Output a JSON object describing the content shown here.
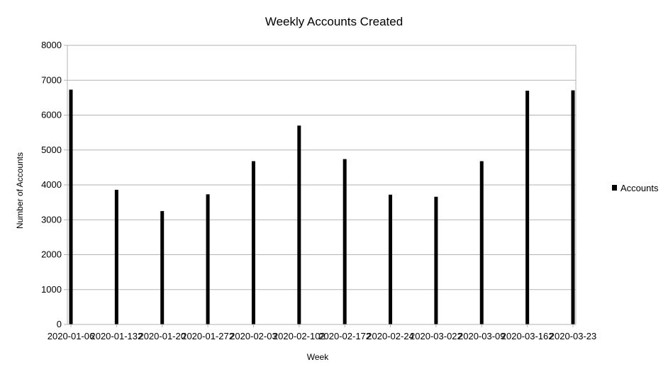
{
  "chart_data": {
    "type": "bar",
    "title": "Weekly Accounts Created",
    "xlabel": "Week",
    "ylabel": "Number of Accounts",
    "categories": [
      "2020-01-06",
      "2020-01-13",
      "2020-01-20",
      "2020-01-27",
      "2020-02-03",
      "2020-02-10",
      "2020-02-17",
      "2020-02-24",
      "2020-03-02",
      "2020-03-09",
      "2020-03-16",
      "2020-03-23"
    ],
    "x_tick_labels": [
      "2020-01-06",
      "2020-01-132",
      "2020-01-20",
      "2020-01-272",
      "2020-02-03",
      "2020-02-102",
      "2020-02-172",
      "2020-02-24",
      "2020-03-022",
      "2020-03-09",
      "2020-03-162",
      "2020-03-23"
    ],
    "series": [
      {
        "name": "Accounts",
        "values": [
          6730,
          3860,
          3250,
          3730,
          4680,
          5700,
          4740,
          3720,
          3660,
          4680,
          6700,
          6710
        ]
      }
    ],
    "ylim": [
      0,
      8000
    ],
    "y_ticks": [
      0,
      1000,
      2000,
      3000,
      4000,
      5000,
      6000,
      7000,
      8000
    ],
    "grid": true,
    "legend": "right",
    "colors": {
      "bar": "#000000",
      "grid": "#b3b3b3",
      "axis": "#b3b3b3"
    }
  }
}
